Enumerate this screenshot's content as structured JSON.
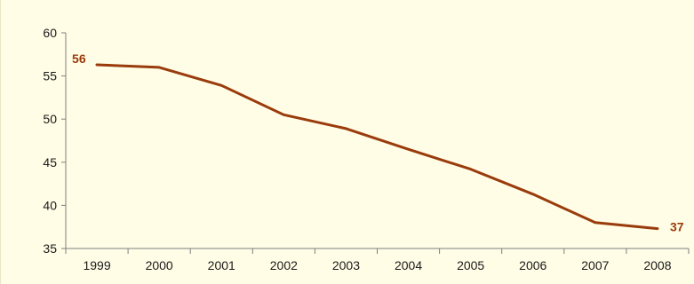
{
  "chart_data": {
    "type": "line",
    "title": "",
    "xlabel": "",
    "ylabel": "",
    "categories": [
      "1999",
      "2000",
      "2001",
      "2002",
      "2003",
      "2004",
      "2005",
      "2006",
      "2007",
      "2008"
    ],
    "series": [
      {
        "values": [
          56.3,
          56.0,
          53.9,
          50.5,
          48.9,
          46.5,
          44.2,
          41.3,
          38.0,
          37.3
        ]
      }
    ],
    "ylim": [
      35,
      60
    ],
    "yticks": [
      35,
      40,
      45,
      50,
      55,
      60
    ],
    "data_labels": [
      {
        "index": 0,
        "text": "56"
      },
      {
        "index": 9,
        "text": "37"
      }
    ],
    "grid": false,
    "legend": "none",
    "colors": {
      "line": "#9a3b0c",
      "axis": "#7f7f7f",
      "background": "#fffde6"
    }
  }
}
